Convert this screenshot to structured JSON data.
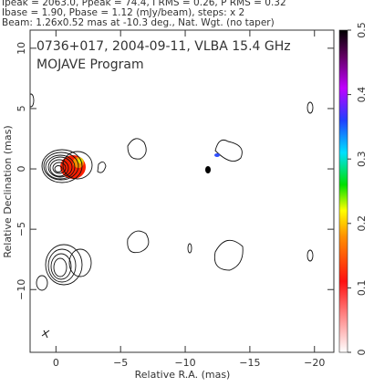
{
  "chart_data": {
    "type": "contour",
    "header": [
      "Ipeak = 2063.0, Ppeak = 74.4, I RMS = 0.26, P RMS = 0.32",
      "Ibase = 1.90, Pbase = 1.12 (mJy/beam), steps: x 2",
      "Beam: 1.26x0.52 mas at -10.3 deg., Nat. Wgt. (no taper)"
    ],
    "title": "0736+017, 2004-09-11, VLBA 15.4 GHz",
    "subtitle": "MOJAVE Program",
    "xlabel": "Relative R.A. (mas)",
    "ylabel": "Relative Declination (mas)",
    "xlim": [
      2,
      -21.5
    ],
    "ylim": [
      -15.2,
      11.5
    ],
    "xticks": [
      0,
      {
        "value": -5,
        "label": "−5"
      },
      {
        "value": -10,
        "label": "−10"
      },
      {
        "value": -15,
        "label": "−15"
      },
      {
        "value": -20,
        "label": "−20"
      }
    ],
    "yticks": [
      10,
      5,
      0,
      {
        "value": -5,
        "label": "−5"
      },
      {
        "value": -10,
        "label": "−10"
      }
    ],
    "colorbar": {
      "lim": [
        0,
        0.5
      ],
      "ticks": [
        0,
        0.1,
        0.2,
        0.3,
        0.4,
        0.5
      ]
    }
  }
}
